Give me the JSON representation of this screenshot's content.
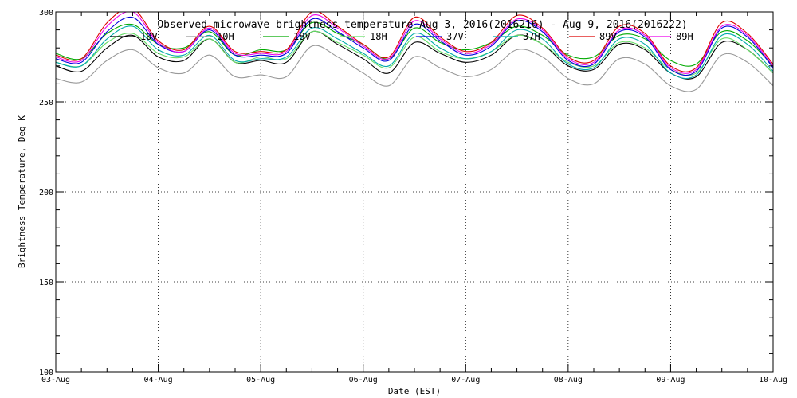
{
  "chart_data": {
    "type": "line",
    "title": "Observed microwave brightness temperature Aug  3, 2016(2016216) - Aug  9, 2016(2016222)",
    "xlabel": "Date (EST)",
    "ylabel": "Brightness Temperature, Deg K",
    "ylim": [
      100,
      300
    ],
    "xlim": [
      "2016-08-03",
      "2016-08-10"
    ],
    "y_ticks": [
      "100",
      "150",
      "200",
      "250",
      "300"
    ],
    "x_ticks": [
      "03-Aug",
      "04-Aug",
      "05-Aug",
      "06-Aug",
      "07-Aug",
      "08-Aug",
      "09-Aug",
      "10-Aug"
    ],
    "grid": true,
    "legend_position": "top",
    "x": [
      "2016-08-03",
      "2016-08-03 06:00",
      "2016-08-03 12:00",
      "2016-08-03 18:00",
      "2016-08-04",
      "2016-08-04 06:00",
      "2016-08-04 12:00",
      "2016-08-04 18:00",
      "2016-08-05",
      "2016-08-05 06:00",
      "2016-08-05 12:00",
      "2016-08-05 18:00",
      "2016-08-06",
      "2016-08-06 06:00",
      "2016-08-06 12:00",
      "2016-08-06 18:00",
      "2016-08-07",
      "2016-08-07 06:00",
      "2016-08-07 12:00",
      "2016-08-07 18:00",
      "2016-08-08",
      "2016-08-08 06:00",
      "2016-08-08 12:00",
      "2016-08-08 18:00",
      "2016-08-09",
      "2016-08-09 06:00",
      "2016-08-09 12:00",
      "2016-08-09 18:00",
      "2016-08-10"
    ],
    "series": [
      {
        "name": "10V",
        "color": "#000000",
        "values": [
          270,
          267,
          280,
          287,
          275,
          273,
          285,
          272,
          273,
          272,
          289,
          282,
          274,
          266,
          283,
          277,
          272,
          276,
          287,
          282,
          270,
          268,
          282,
          279,
          266,
          264,
          283,
          279,
          266
        ]
      },
      {
        "name": "10H",
        "color": "#999999",
        "values": [
          263,
          261,
          273,
          279,
          269,
          266,
          276,
          264,
          265,
          264,
          281,
          275,
          266,
          259,
          275,
          269,
          264,
          268,
          279,
          275,
          263,
          260,
          274,
          271,
          259,
          257,
          276,
          272,
          259
        ]
      },
      {
        "name": "18V",
        "color": "#00aa00",
        "values": [
          277,
          274,
          288,
          293,
          282,
          280,
          289,
          276,
          279,
          279,
          294,
          288,
          282,
          274,
          291,
          283,
          279,
          283,
          292,
          287,
          276,
          275,
          287,
          285,
          273,
          271,
          289,
          284,
          270
        ]
      },
      {
        "name": "18H",
        "color": "#66dd66",
        "values": [
          272,
          270,
          283,
          288,
          277,
          275,
          285,
          272,
          275,
          274,
          289,
          283,
          276,
          269,
          286,
          278,
          274,
          278,
          287,
          282,
          272,
          270,
          283,
          280,
          268,
          266,
          285,
          279,
          266
        ]
      },
      {
        "name": "37V",
        "color": "#0000dd",
        "values": [
          274,
          272,
          289,
          297,
          282,
          278,
          290,
          276,
          276,
          277,
          296,
          289,
          280,
          273,
          293,
          284,
          276,
          281,
          295,
          289,
          273,
          271,
          289,
          286,
          268,
          267,
          291,
          286,
          269
        ]
      },
      {
        "name": "37H",
        "color": "#00aaaa",
        "values": [
          272,
          270,
          285,
          292,
          279,
          276,
          287,
          273,
          274,
          275,
          291,
          285,
          277,
          270,
          288,
          280,
          274,
          278,
          290,
          285,
          271,
          269,
          285,
          282,
          266,
          265,
          287,
          282,
          267
        ]
      },
      {
        "name": "89V",
        "color": "#dd0000",
        "values": [
          276,
          274,
          294,
          302,
          284,
          279,
          292,
          278,
          278,
          279,
          300,
          292,
          282,
          275,
          297,
          286,
          278,
          283,
          298,
          291,
          275,
          273,
          292,
          288,
          270,
          269,
          294,
          288,
          271
        ]
      },
      {
        "name": "89H",
        "color": "#ee00ee",
        "values": [
          275,
          273,
          292,
          300,
          283,
          278,
          291,
          277,
          277,
          278,
          298,
          291,
          281,
          274,
          295,
          285,
          277,
          282,
          296,
          290,
          274,
          272,
          290,
          287,
          269,
          268,
          292,
          287,
          270
        ]
      }
    ]
  }
}
